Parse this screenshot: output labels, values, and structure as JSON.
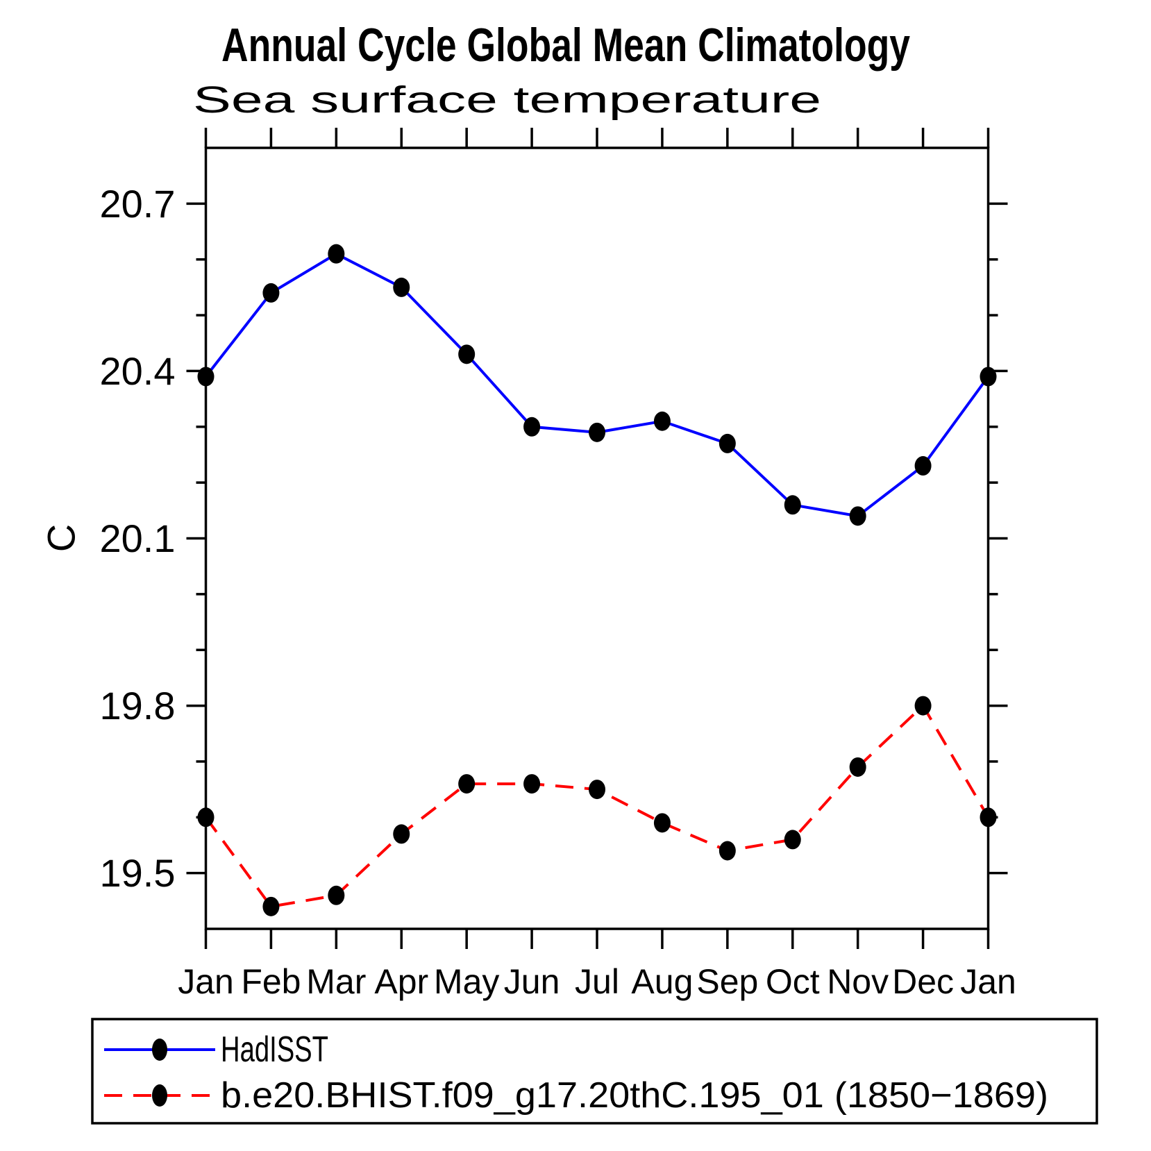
{
  "chart_data": {
    "type": "line",
    "title": "Annual Cycle Global Mean Climatology",
    "subtitle": "Sea surface temperature",
    "ylabel": "C",
    "x_categories": [
      "Jan",
      "Feb",
      "Mar",
      "Apr",
      "May",
      "Jun",
      "Jul",
      "Aug",
      "Sep",
      "Oct",
      "Nov",
      "Dec",
      "Jan"
    ],
    "ylim": [
      19.4,
      20.8
    ],
    "y_ticks_major": [
      19.5,
      19.8,
      20.1,
      20.4,
      20.7
    ],
    "y_ticks_minor": [
      19.6,
      19.7,
      19.9,
      20.0,
      20.2,
      20.3,
      20.5,
      20.6
    ],
    "grid": false,
    "legend_position": "bottom",
    "series": [
      {
        "name": "HadISST",
        "color": "#0000ff",
        "line_style": "solid",
        "marker": "filled-circle",
        "marker_color": "#000000",
        "values": [
          20.39,
          20.54,
          20.61,
          20.55,
          20.43,
          20.3,
          20.29,
          20.31,
          20.27,
          20.16,
          20.14,
          20.23,
          20.39
        ]
      },
      {
        "name": "b.e20.BHIST.f09_g17.20thC.195_01 (1850−1869)",
        "color": "#ff0000",
        "line_style": "dashed",
        "marker": "filled-circle",
        "marker_color": "#000000",
        "values": [
          19.6,
          19.44,
          19.46,
          19.57,
          19.66,
          19.66,
          19.65,
          19.59,
          19.54,
          19.56,
          19.69,
          19.8,
          19.6
        ]
      }
    ]
  },
  "colors": {
    "axis": "#000000",
    "background": "#ffffff",
    "series1": "#0000ff",
    "series2": "#ff0000",
    "marker": "#000000"
  }
}
